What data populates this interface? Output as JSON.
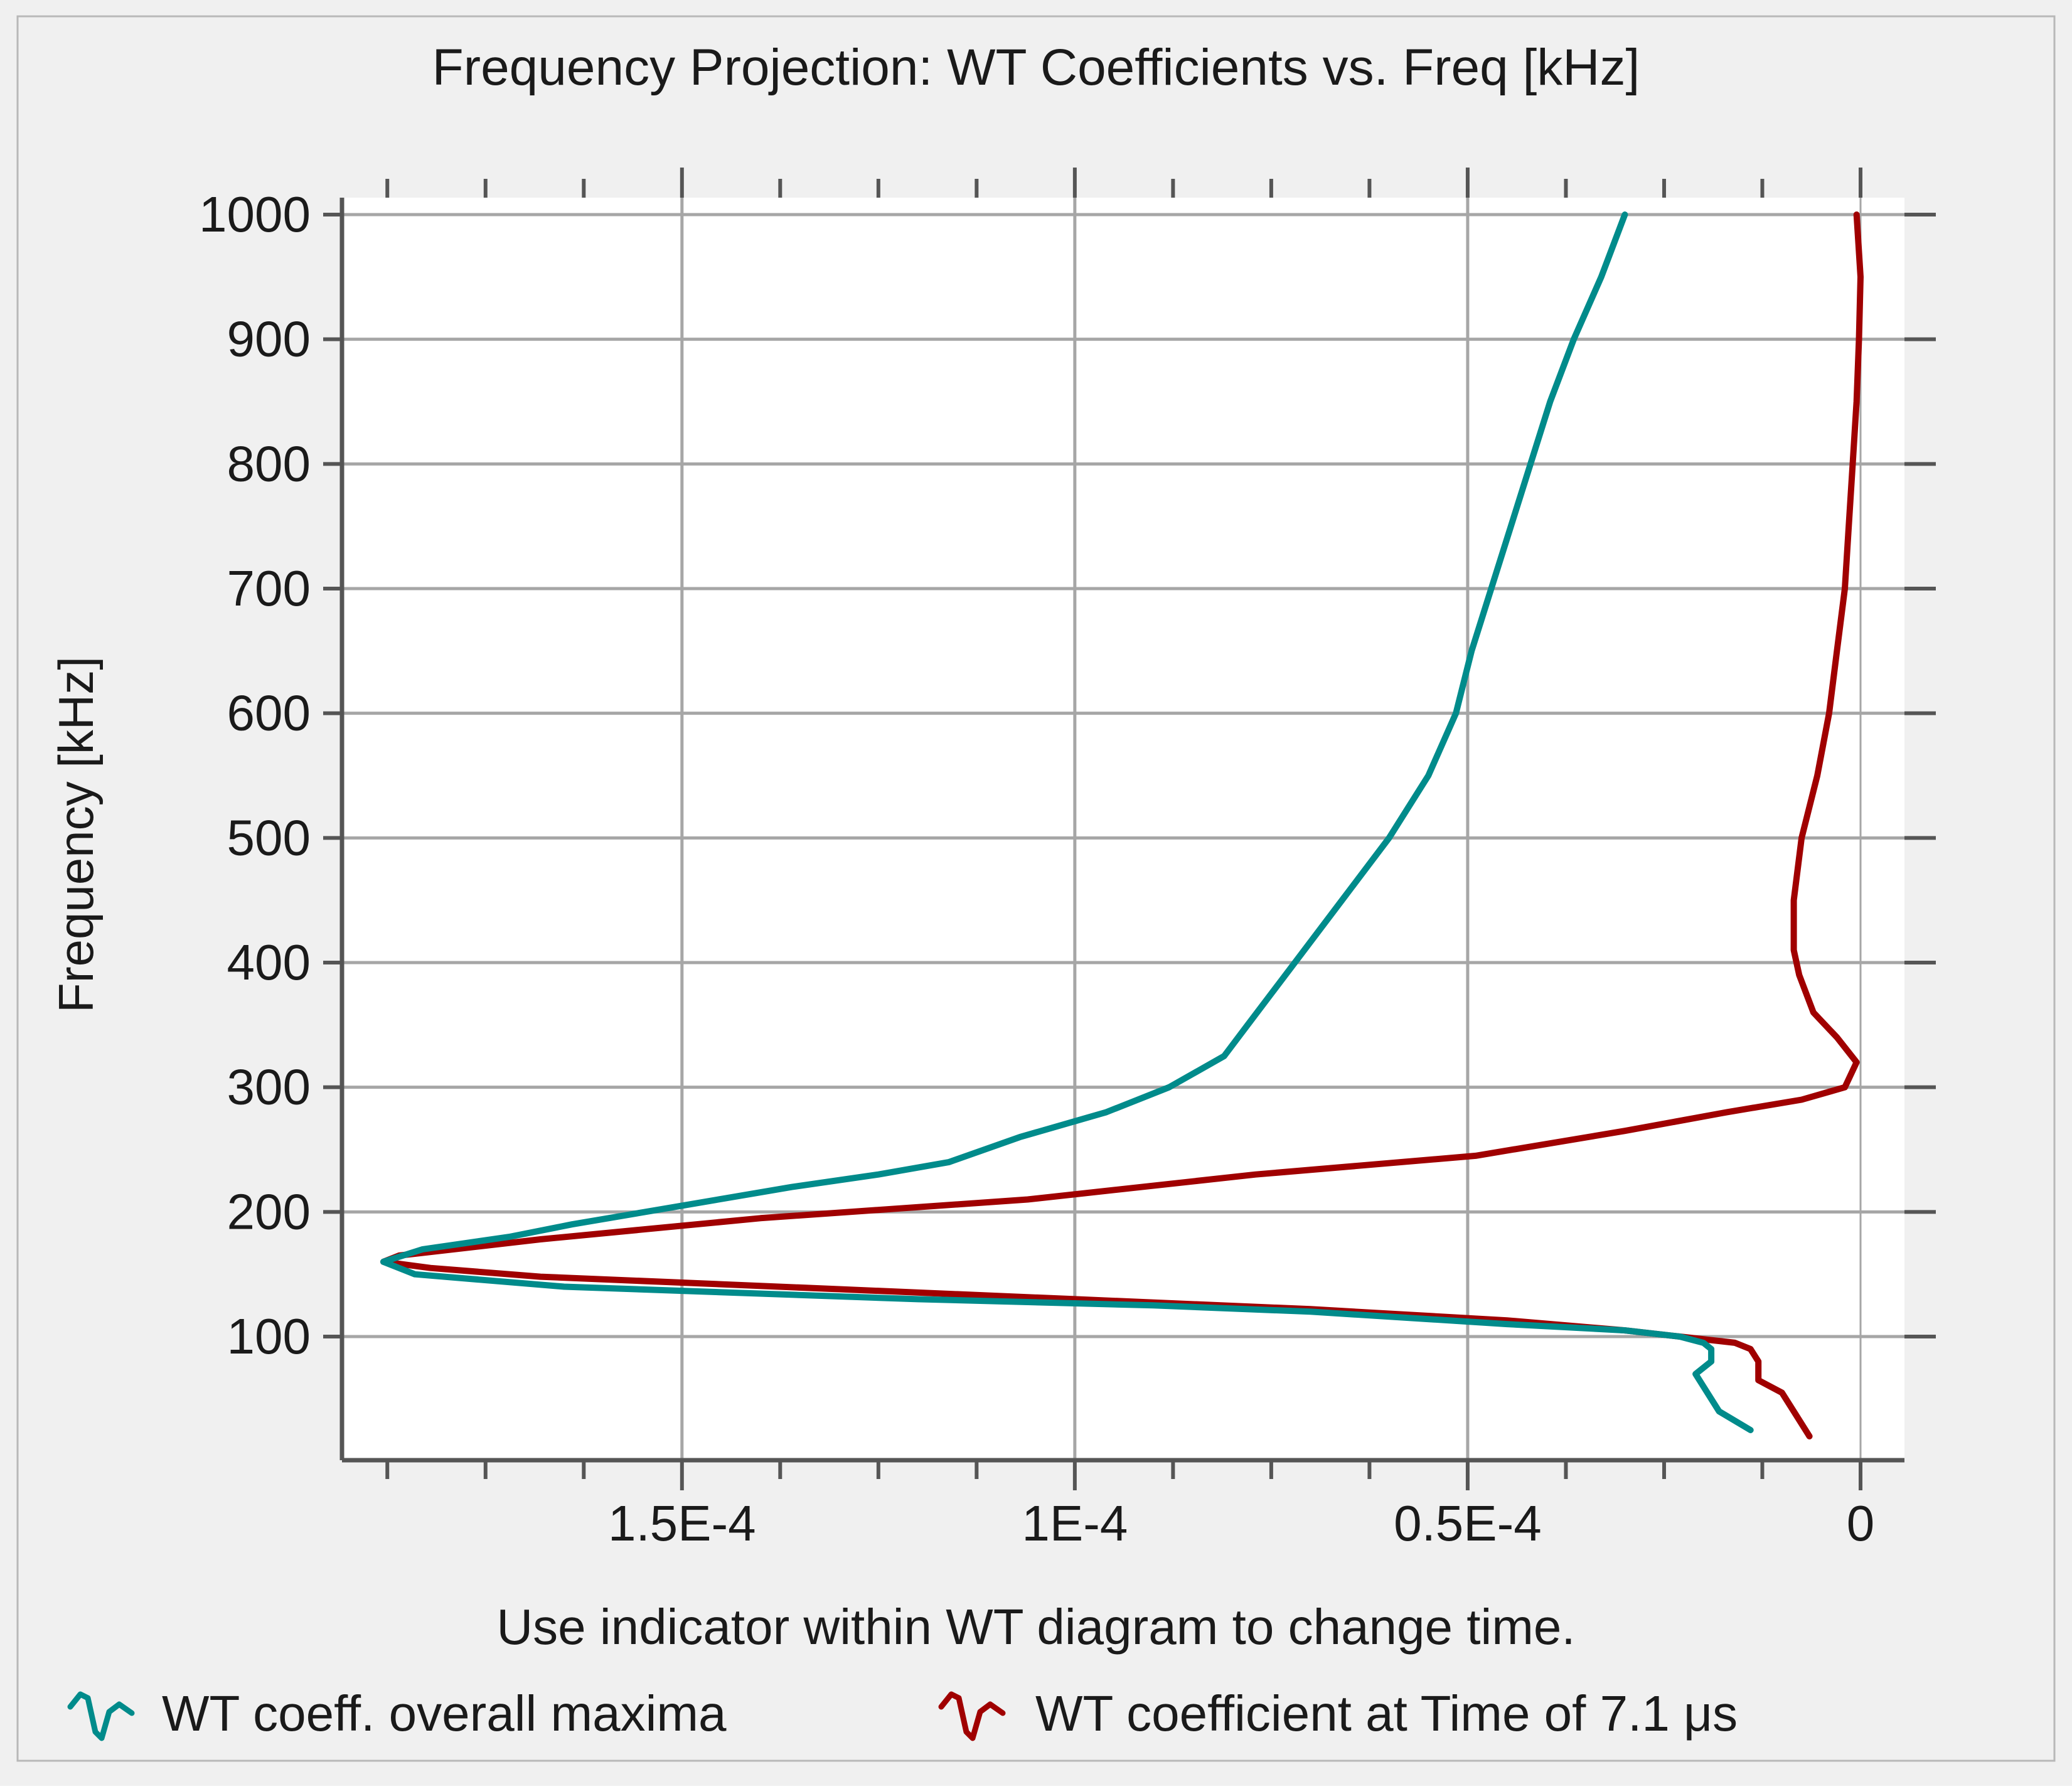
{
  "colors": {
    "panel_background": "#f0f0f0",
    "plot_background": "#ffffff",
    "grid": "#a6a6a6",
    "axis": "#555555",
    "text": "#1a1a1a",
    "series_overall": "#008b8b",
    "series_time": "#a00000"
  },
  "footer": {
    "hint": "Use indicator within WT diagram to change time."
  },
  "legend": {
    "items": [
      {
        "label": "WT coeff. overall maxima",
        "icon": "teal-wave-icon"
      },
      {
        "label": "WT coefficient at Time of 7.1 μs",
        "icon": "red-wave-icon"
      }
    ]
  },
  "chart_data": {
    "type": "line",
    "title": "Frequency Projection: WT Coefficients vs. Freq [kHz]",
    "xlabel": "",
    "ylabel": "Frequency [kHz]",
    "x_reversed": true,
    "xlim": [
      0,
      0.000188
    ],
    "ylim": [
      15,
      1005
    ],
    "x_ticks": [
      0.00015,
      0.0001,
      5e-05,
      0
    ],
    "x_tick_labels": [
      "1.5E-4",
      "1E-4",
      "0.5E-4",
      "0"
    ],
    "y_ticks": [
      100,
      200,
      300,
      400,
      500,
      600,
      700,
      800,
      900,
      1000
    ],
    "y_tick_labels": [
      "100",
      "200",
      "300",
      "400",
      "500",
      "600",
      "700",
      "800",
      "900",
      "1000"
    ],
    "grid": true,
    "series": [
      {
        "name": "WT coeff. overall maxima",
        "points": [
          [
            3e-05,
            1000
          ],
          [
            3.3e-05,
            950
          ],
          [
            3.65e-05,
            900
          ],
          [
            3.95e-05,
            850
          ],
          [
            4.2e-05,
            800
          ],
          [
            4.45e-05,
            750
          ],
          [
            4.7e-05,
            700
          ],
          [
            4.95e-05,
            650
          ],
          [
            5.15e-05,
            600
          ],
          [
            5.5e-05,
            550
          ],
          [
            6e-05,
            500
          ],
          [
            6.6e-05,
            450
          ],
          [
            7.2e-05,
            400
          ],
          [
            7.8e-05,
            350
          ],
          [
            8.1e-05,
            325
          ],
          [
            8.8e-05,
            300
          ],
          [
            9.6e-05,
            280
          ],
          [
            0.000107,
            260
          ],
          [
            0.000116,
            240
          ],
          [
            0.000125,
            230
          ],
          [
            0.000136,
            220
          ],
          [
            0.00015,
            205
          ],
          [
            0.000164,
            190
          ],
          [
            0.000172,
            180
          ],
          [
            0.000183,
            170
          ],
          [
            0.000188,
            160
          ],
          [
            0.000184,
            150
          ],
          [
            0.000165,
            140
          ],
          [
            0.00012,
            130
          ],
          [
            9e-05,
            125
          ],
          [
            7e-05,
            120
          ],
          [
            4.5e-05,
            110
          ],
          [
            3e-05,
            105
          ],
          [
            2.3e-05,
            100
          ],
          [
            2e-05,
            95
          ],
          [
            1.9e-05,
            90
          ],
          [
            1.9e-05,
            80
          ],
          [
            2.1e-05,
            70
          ],
          [
            2e-05,
            60
          ],
          [
            1.8e-05,
            40
          ],
          [
            1.4e-05,
            25
          ]
        ]
      },
      {
        "name": "WT coefficient at Time of 7.1 μs",
        "points": [
          [
            5e-07,
            1000
          ],
          [
            0.0,
            950
          ],
          [
            2e-07,
            900
          ],
          [
            5e-07,
            850
          ],
          [
            1e-06,
            800
          ],
          [
            1.5e-06,
            750
          ],
          [
            2e-06,
            700
          ],
          [
            3e-06,
            650
          ],
          [
            4e-06,
            600
          ],
          [
            5.5e-06,
            550
          ],
          [
            7.5e-06,
            500
          ],
          [
            8.5e-06,
            450
          ],
          [
            8.5e-06,
            410
          ],
          [
            7.8e-06,
            390
          ],
          [
            6e-06,
            360
          ],
          [
            3e-06,
            340
          ],
          [
            5e-07,
            320
          ],
          [
            2e-06,
            300
          ],
          [
            7.5e-06,
            290
          ],
          [
            1.7e-05,
            280
          ],
          [
            3e-05,
            265
          ],
          [
            4.9e-05,
            245
          ],
          [
            7.7e-05,
            230
          ],
          [
            0.000106,
            210
          ],
          [
            0.00014,
            195
          ],
          [
            0.000168,
            178
          ],
          [
            0.000186,
            165
          ],
          [
            0.000188,
            160
          ],
          [
            0.000182,
            155
          ],
          [
            0.000168,
            148
          ],
          [
            0.00013,
            138
          ],
          [
            0.0001,
            130
          ],
          [
            7e-05,
            122
          ],
          [
            4.5e-05,
            113
          ],
          [
            3e-05,
            105
          ],
          [
            2.3e-05,
            100
          ],
          [
            1.6e-05,
            95
          ],
          [
            1.4e-05,
            90
          ],
          [
            1.3e-05,
            80
          ],
          [
            1.3e-05,
            65
          ],
          [
            1e-05,
            55
          ],
          [
            8.5e-06,
            40
          ],
          [
            6.5e-06,
            20
          ]
        ]
      }
    ]
  }
}
